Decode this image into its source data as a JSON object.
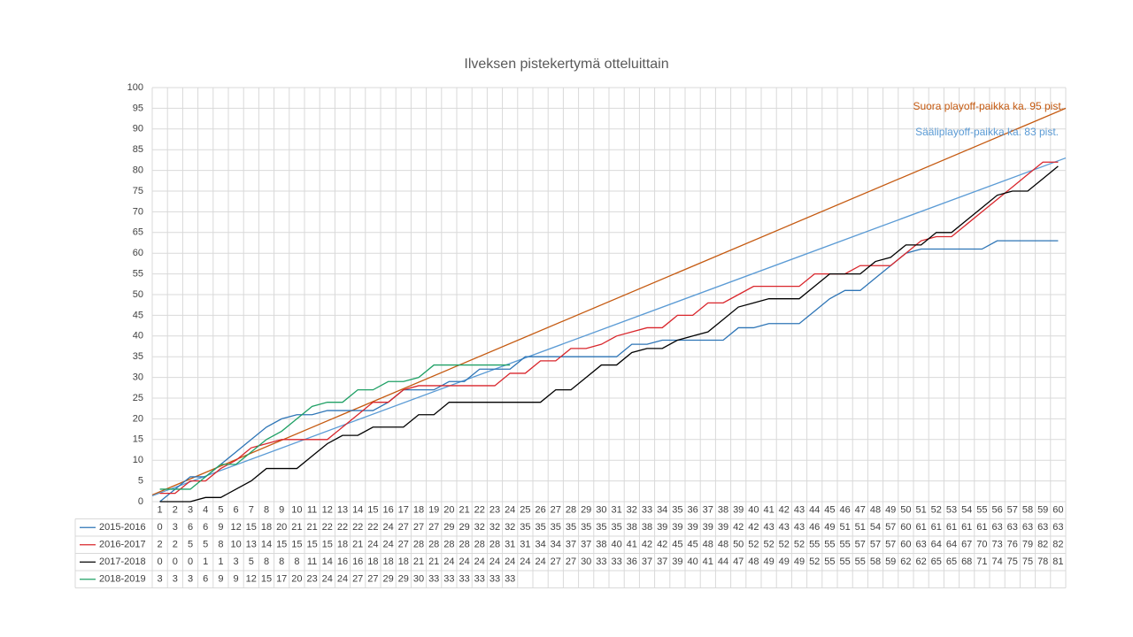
{
  "chart_data": {
    "type": "line",
    "title": "Ilveksen pistekertymä otteluittain",
    "categories": [
      1,
      2,
      3,
      4,
      5,
      6,
      7,
      8,
      9,
      10,
      11,
      12,
      13,
      14,
      15,
      16,
      17,
      18,
      19,
      20,
      21,
      22,
      23,
      24,
      25,
      26,
      27,
      28,
      29,
      30,
      31,
      32,
      33,
      34,
      35,
      36,
      37,
      38,
      39,
      40,
      41,
      42,
      43,
      44,
      45,
      46,
      47,
      48,
      49,
      50,
      51,
      52,
      53,
      54,
      55,
      56,
      57,
      58,
      59,
      60
    ],
    "series": [
      {
        "name": "2015-2016",
        "color": "#2e75b6",
        "values": [
          0,
          3,
          6,
          6,
          9,
          12,
          15,
          18,
          20,
          21,
          21,
          22,
          22,
          22,
          22,
          24,
          27,
          27,
          27,
          29,
          29,
          32,
          32,
          32,
          35,
          35,
          35,
          35,
          35,
          35,
          35,
          38,
          38,
          39,
          39,
          39,
          39,
          39,
          42,
          42,
          43,
          43,
          43,
          46,
          49,
          51,
          51,
          54,
          57,
          60,
          61,
          61,
          61,
          61,
          61,
          63,
          63,
          63,
          63,
          63
        ]
      },
      {
        "name": "2016-2017",
        "color": "#d9262c",
        "values": [
          2,
          2,
          5,
          5,
          8,
          10,
          13,
          14,
          15,
          15,
          15,
          15,
          18,
          21,
          24,
          24,
          27,
          28,
          28,
          28,
          28,
          28,
          28,
          31,
          31,
          34,
          34,
          37,
          37,
          38,
          40,
          41,
          42,
          42,
          45,
          45,
          48,
          48,
          50,
          52,
          52,
          52,
          52,
          55,
          55,
          55,
          57,
          57,
          57,
          60,
          63,
          64,
          64,
          67,
          70,
          73,
          76,
          79,
          82,
          82
        ]
      },
      {
        "name": "2017-2018",
        "color": "#000000",
        "values": [
          0,
          0,
          0,
          1,
          1,
          3,
          5,
          8,
          8,
          8,
          11,
          14,
          16,
          16,
          18,
          18,
          18,
          21,
          21,
          24,
          24,
          24,
          24,
          24,
          24,
          24,
          27,
          27,
          30,
          33,
          33,
          36,
          37,
          37,
          39,
          40,
          41,
          44,
          47,
          48,
          49,
          49,
          49,
          52,
          55,
          55,
          55,
          58,
          59,
          62,
          62,
          65,
          65,
          68,
          71,
          74,
          75,
          75,
          78,
          81
        ]
      },
      {
        "name": "2018-2019",
        "color": "#1fa065",
        "values": [
          3,
          3,
          3,
          6,
          9,
          9,
          12,
          15,
          17,
          20,
          23,
          24,
          24,
          27,
          27,
          29,
          29,
          30,
          33,
          33,
          33,
          33,
          33,
          33,
          null,
          null,
          null,
          null,
          null,
          null,
          null,
          null,
          null,
          null,
          null,
          null,
          null,
          null,
          null,
          null,
          null,
          null,
          null,
          null,
          null,
          null,
          null,
          null,
          null,
          null,
          null,
          null,
          null,
          null,
          null,
          null,
          null,
          null,
          null,
          null
        ]
      }
    ],
    "reference_lines": [
      {
        "label": "Suora playoff-paikka ka. 95 pist.",
        "color": "#c55a11",
        "x": [
          0.5,
          60.5
        ],
        "values": [
          1.6,
          95
        ]
      },
      {
        "label": "Sääliplayoff-paikka ka. 83 pist.",
        "color": "#5b9bd5",
        "x": [
          0.5,
          60.5
        ],
        "values": [
          1.4,
          83
        ]
      }
    ],
    "ylim": [
      0,
      100
    ],
    "yticks": [
      0,
      5,
      10,
      15,
      20,
      25,
      30,
      35,
      40,
      45,
      50,
      55,
      60,
      65,
      70,
      75,
      80,
      85,
      90,
      95,
      100
    ],
    "grid": true,
    "data_table": true
  }
}
